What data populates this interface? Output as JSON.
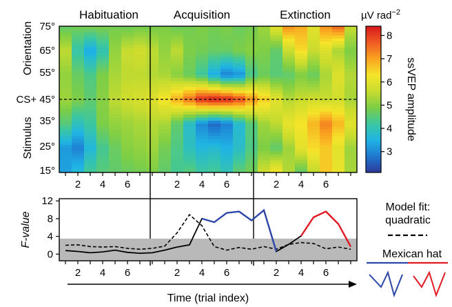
{
  "chart_data": [
    {
      "type": "heatmap",
      "phases": [
        "Habituation",
        "Acquisition",
        "Extinction"
      ],
      "ylabel_top": "Orientation",
      "ylabel_bottom": "Stimulus",
      "y_ticks": [
        "75°",
        "65°",
        "55°",
        "CS+ 45°",
        "35°",
        "25°",
        "15°"
      ],
      "y_values": [
        75,
        65,
        55,
        45,
        35,
        25,
        15
      ],
      "x_ticks": [
        "2",
        "4",
        "6",
        "2",
        "4",
        "6",
        "2",
        "4",
        "6"
      ],
      "trials_per_phase": 8,
      "colorbar": {
        "unit": "µV rad",
        "unit_exponent": "−2",
        "label": "ssVEP amplitude",
        "ticks": [
          "8",
          "7",
          "6",
          "5",
          "4",
          "3"
        ],
        "range": [
          2.1,
          8.4
        ],
        "colors": [
          "#2b3a99",
          "#1f78d0",
          "#1fb4e4",
          "#3cc7a0",
          "#7dce46",
          "#c9dc2e",
          "#f5e52a",
          "#f9a320",
          "#ef5a22",
          "#d7191c"
        ]
      },
      "cs_plus_line": 45,
      "values": [
        [
          4.6,
          4.8,
          4.9,
          4.9,
          4.8,
          4.7,
          4.8,
          4.8,
          4.9,
          4.7,
          4.8,
          4.9,
          4.8,
          4.9,
          4.7,
          4.8,
          5.2,
          6.0,
          7.2,
          6.9,
          6.0,
          7.2,
          7.6,
          5.6
        ],
        [
          5.5,
          4.1,
          3.4,
          4.0,
          5.1,
          5.6,
          5.7,
          5.5,
          5.1,
          5.5,
          4.9,
          4.8,
          4.7,
          4.7,
          4.9,
          5.0,
          4.9,
          4.6,
          5.6,
          6.4,
          5.6,
          5.9,
          5.3,
          4.9
        ],
        [
          5.1,
          4.7,
          4.4,
          4.9,
          5.3,
          5.5,
          5.5,
          5.4,
          5.3,
          5.0,
          4.7,
          4.2,
          3.4,
          2.9,
          3.1,
          4.3,
          4.7,
          4.5,
          4.6,
          4.9,
          4.7,
          5.3,
          5.9,
          5.4
        ],
        [
          5.2,
          4.9,
          4.6,
          5.0,
          5.5,
          5.7,
          5.8,
          5.9,
          6.3,
          6.9,
          7.5,
          8.2,
          8.4,
          8.3,
          7.9,
          7.2,
          6.6,
          6.0,
          5.4,
          5.6,
          5.7,
          5.6,
          5.7,
          5.3
        ],
        [
          4.5,
          3.9,
          4.2,
          4.9,
          5.1,
          5.2,
          5.3,
          5.4,
          5.3,
          4.6,
          3.8,
          3.0,
          2.6,
          2.9,
          3.7,
          4.5,
          5.2,
          5.5,
          6.1,
          6.3,
          6.8,
          7.3,
          6.8,
          6.0
        ],
        [
          3.2,
          2.9,
          3.6,
          4.3,
          4.7,
          5.0,
          5.1,
          5.2,
          4.8,
          4.4,
          3.9,
          3.6,
          3.7,
          3.5,
          3.8,
          4.4,
          4.9,
          4.6,
          5.2,
          6.0,
          6.4,
          6.6,
          6.0,
          5.2
        ],
        [
          3.3,
          3.7,
          4.3,
          4.5,
          4.6,
          4.7,
          4.8,
          4.9,
          4.6,
          4.3,
          4.5,
          4.2,
          4.3,
          4.0,
          4.6,
          4.8,
          5.7,
          6.3,
          5.4,
          4.6,
          5.5,
          6.6,
          6.1,
          5.3
        ]
      ]
    },
    {
      "type": "line",
      "ylabel": "F-value",
      "ylim": [
        -1.5,
        12.5
      ],
      "y_ticks": [
        "12",
        "8",
        "4",
        "0"
      ],
      "x_ticks": [
        "2",
        "4",
        "6",
        "2",
        "4",
        "6",
        "2",
        "4",
        "6"
      ],
      "xlabel": "Time (trial index)",
      "shaded_threshold": 3.5,
      "series": [
        {
          "name": "Mexican hat",
          "values": [
            0.8,
            0.6,
            0.3,
            0.5,
            0.9,
            0.4,
            0.2,
            0.3,
            0.9,
            1.6,
            2.1,
            8.0,
            7.2,
            9.3,
            9.6,
            7.6,
            9.9,
            0.6,
            2.2,
            4.1,
            8.3,
            9.6,
            6.8,
            1.7
          ],
          "colored_segments": [
            {
              "from": 11,
              "to": 17,
              "color": "#2b45a8"
            },
            {
              "from": 19,
              "to": 23,
              "color": "#e11a22"
            }
          ]
        },
        {
          "name": "quadratic",
          "style": "dashed",
          "values": [
            2.0,
            2.1,
            1.7,
            1.6,
            1.7,
            1.3,
            1.1,
            1.3,
            1.8,
            4.8,
            8.9,
            6.4,
            1.7,
            0.9,
            1.5,
            1.1,
            1.7,
            1.1,
            2.2,
            2.6,
            2.4,
            1.2,
            1.6,
            1.1
          ]
        }
      ]
    }
  ],
  "legend": {
    "model_fit_line1": "Model fit:",
    "model_fit_line2": "quadratic",
    "mexican_hat": "Mexican hat",
    "blue": "#2b45a8",
    "red": "#e11a22"
  }
}
